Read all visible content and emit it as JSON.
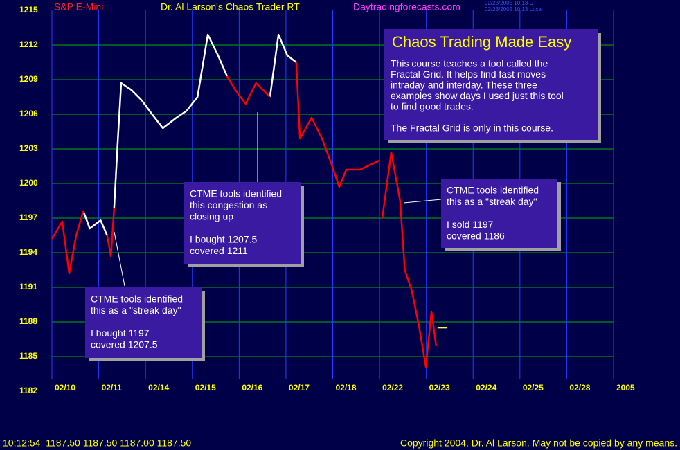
{
  "header": {
    "symbol": "S&P E-Mini",
    "program": "Dr. Al Larson's Chaos Trader RT",
    "site": "Daytradingforecasts.com",
    "time_ut": "02/23/2005 10:13 UT",
    "time_local": "02/23/2005 10:13 Local"
  },
  "footer": {
    "quote": "10:12:54  1187.50 1187.50 1187.00 1187.50",
    "copyright": "Copyright 2004, Dr. Al Larson. May not be copied by any means."
  },
  "chart_data": {
    "type": "line",
    "x": [
      0,
      0.22,
      0.37,
      0.52,
      0.67,
      0.81,
      1.04,
      1.18,
      1.26,
      1.33,
      1.41,
      1.48,
      1.7,
      1.92,
      2.14,
      2.37,
      2.66,
      2.88,
      3.11,
      3.33,
      3.55,
      3.74,
      3.92,
      4.14,
      4.36,
      4.66,
      4.84,
      5.03,
      5.22,
      5.3,
      5.55,
      5.77,
      5.99,
      6.14,
      6.29,
      6.58,
      7.0,
      7.01,
      7.06,
      7.25,
      7.44,
      7.54,
      7.69,
      7.84,
      7.99,
      8.11,
      8.21
    ],
    "series": [
      {
        "color": "#ffffff",
        "values": [
          null,
          null,
          null,
          null,
          1197.6,
          1196.1,
          1196.8,
          1195.5,
          null,
          1197.9,
          1203.9,
          1208.7,
          1208.1,
          1207.2,
          1206.0,
          1204.8,
          1205.7,
          1206.3,
          1207.5,
          1212.9,
          1211.1,
          1209.3,
          null,
          null,
          null,
          1207.5,
          1212.9,
          1211.1,
          1210.5,
          null,
          null,
          null,
          null,
          null,
          null,
          null,
          null,
          null,
          null,
          null,
          null,
          null,
          null,
          null,
          null,
          null,
          null
        ]
      },
      {
        "color": "#ff0000",
        "values": [
          1195.2,
          1196.7,
          1192.2,
          1195.5,
          1197.6,
          null,
          null,
          1195.5,
          1193.7,
          1197.9,
          null,
          null,
          null,
          null,
          null,
          null,
          null,
          null,
          null,
          null,
          null,
          1209.3,
          1208.1,
          1206.9,
          1208.7,
          1207.5,
          null,
          null,
          1210.5,
          1203.9,
          1205.7,
          1203.9,
          1201.5,
          1199.7,
          1201.2,
          1201.2,
          1202.0,
          null,
          1197.0,
          1202.7,
          1198.5,
          1192.5,
          1190.7,
          1187.7,
          1184.1,
          1188.9,
          1185.9
        ]
      }
    ],
    "last_price": 1187.5,
    "xlim": [
      0,
      12
    ],
    "xticks": [
      {
        "value": 0,
        "label": "02/10"
      },
      {
        "value": 1,
        "label": "02/11"
      },
      {
        "value": 2,
        "label": "02/14"
      },
      {
        "value": 3,
        "label": "02/15"
      },
      {
        "value": 4,
        "label": "02/16"
      },
      {
        "value": 5,
        "label": "02/17"
      },
      {
        "value": 6,
        "label": "02/18"
      },
      {
        "value": 7,
        "label": "02/22"
      },
      {
        "value": 8,
        "label": "02/23"
      },
      {
        "value": 9,
        "label": "02/24"
      },
      {
        "value": 10,
        "label": "02/25"
      },
      {
        "value": 11,
        "label": "02/28"
      },
      {
        "value": 12,
        "label": "2005"
      }
    ],
    "ylim": [
      1182,
      1215
    ],
    "yticks": [
      1182,
      1185,
      1188,
      1191,
      1194,
      1197,
      1200,
      1203,
      1206,
      1209,
      1212,
      1215
    ],
    "grid": true,
    "annotations": [
      {
        "lines": [
          "CTME tools identified",
          "this as a \"streak day\"",
          "",
          "I bought 1197",
          "covered 1207.5"
        ]
      },
      {
        "lines": [
          "CTME tools identified",
          "this congestion as",
          "closing up",
          "",
          "I bought 1207.5",
          "covered 1211"
        ]
      },
      {
        "lines": [
          "CTME tools identified",
          "this as a \"streak day\"",
          "",
          "I sold 1197",
          "covered 1186"
        ]
      }
    ],
    "promo": {
      "title": "Chaos Trading Made Easy",
      "lines": [
        "This course teaches a tool called the",
        "Fractal Grid. It helps find fast moves",
        "intraday and interday. These three",
        "examples show days I used just this tool",
        "to find good trades.",
        "",
        "The Fractal Grid is only in this course."
      ]
    }
  }
}
